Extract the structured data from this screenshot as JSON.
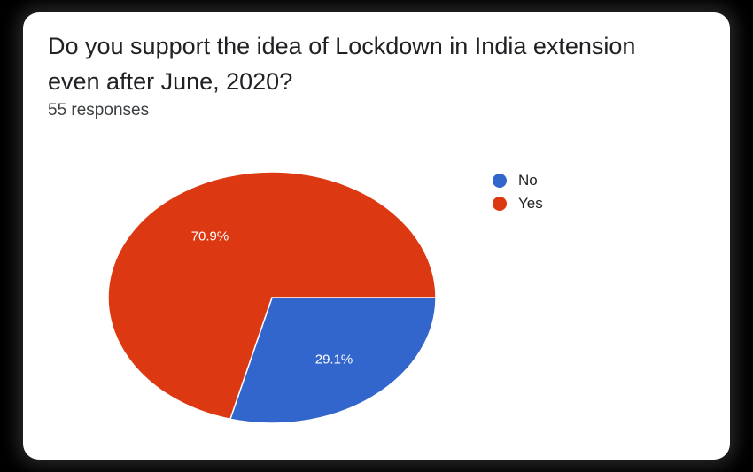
{
  "title": "Do you support the idea of Lockdown in India extension even after June, 2020?",
  "subtitle": "55 responses",
  "chart_data": {
    "type": "pie",
    "slices": [
      {
        "name": "No",
        "value": 29.1,
        "label": "29.1%",
        "color": "#3366cc"
      },
      {
        "name": "Yes",
        "value": 70.9,
        "label": "70.9%",
        "color": "#dc3912"
      }
    ],
    "legend_position": "right"
  }
}
